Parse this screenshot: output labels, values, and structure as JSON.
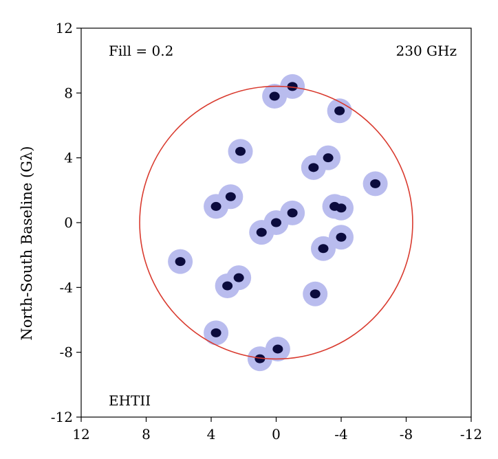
{
  "chart_data": {
    "type": "scatter",
    "title": "",
    "xlabel": "",
    "ylabel": "North-South Baseline (Gλ)",
    "xlim": [
      12,
      -12
    ],
    "ylim": [
      -12,
      12
    ],
    "x_reversed": true,
    "xticks": [
      "12",
      "8",
      "4",
      "0",
      "-4",
      "-8",
      "-12"
    ],
    "yticks": [
      "12",
      "8",
      "4",
      "0",
      "-4",
      "-8",
      "-12"
    ],
    "grid": false,
    "annotations": {
      "top_left": "Fill = 0.2",
      "top_right": "230 GHz",
      "bottom_left": "EHTII"
    },
    "colors": {
      "halo": "#b9bcee",
      "point": "#0b0b3d",
      "circle": "#d93a2e"
    },
    "circle_radius": 8.4,
    "points": [
      {
        "u": 0.0,
        "v": 0.0
      },
      {
        "u": -1.0,
        "v": 0.6
      },
      {
        "u": 0.9,
        "v": -0.6
      },
      {
        "u": 3.7,
        "v": 1.0
      },
      {
        "u": 2.8,
        "v": 1.6
      },
      {
        "u": -3.6,
        "v": 1.0
      },
      {
        "u": -4.0,
        "v": 0.9
      },
      {
        "u": 2.2,
        "v": 4.4
      },
      {
        "u": -2.3,
        "v": 3.4
      },
      {
        "u": -3.2,
        "v": 4.0
      },
      {
        "u": -6.1,
        "v": 2.4
      },
      {
        "u": 5.9,
        "v": -2.4
      },
      {
        "u": -2.9,
        "v": -1.6
      },
      {
        "u": -4.0,
        "v": -0.9
      },
      {
        "u": 2.3,
        "v": -3.4
      },
      {
        "u": 3.0,
        "v": -3.9
      },
      {
        "u": -2.4,
        "v": -4.4
      },
      {
        "u": 3.7,
        "v": -6.8
      },
      {
        "u": 0.1,
        "v": 7.8
      },
      {
        "u": -1.0,
        "v": 8.4
      },
      {
        "u": -3.9,
        "v": 6.9
      },
      {
        "u": -0.1,
        "v": -7.8
      },
      {
        "u": 1.0,
        "v": -8.4
      }
    ]
  }
}
